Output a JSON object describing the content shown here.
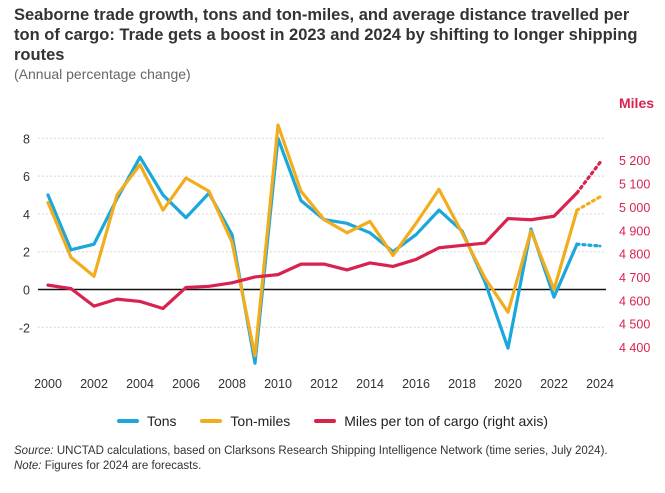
{
  "title": "Seaborne trade growth, tons and ton-miles, and average distance travelled per ton of cargo: Trade gets a boost in 2023 and 2024 by shifting to longer shipping routes",
  "subtitle": "(Annual percentage change)",
  "right_axis_label": "Miles",
  "legend": {
    "tons": "Tons",
    "ton_miles": "Ton-miles",
    "miles": "Miles per ton of cargo (right axis)"
  },
  "source": {
    "label": "Source:",
    "text": "UNCTAD calculations, based on Clarksons Research Shipping Intelligence Network (time series, July 2024)."
  },
  "note": {
    "label": "Note:",
    "text": "Figures for 2024 are forecasts."
  },
  "colors": {
    "tons": "#1aa7dc",
    "ton_miles": "#f2ad1f",
    "miles": "#d8234f",
    "axis_right": "#d8234f",
    "grid": "#c8c8c8"
  },
  "chart_data": {
    "type": "line",
    "x": [
      2000,
      2001,
      2002,
      2003,
      2004,
      2005,
      2006,
      2007,
      2008,
      2009,
      2010,
      2011,
      2012,
      2013,
      2014,
      2015,
      2016,
      2017,
      2018,
      2019,
      2020,
      2021,
      2022,
      2023,
      2024
    ],
    "x_ticks": [
      "2000",
      "2002",
      "2004",
      "2006",
      "2008",
      "2010",
      "2012",
      "2014",
      "2016",
      "2018",
      "2020",
      "2022",
      "2024"
    ],
    "y_left": {
      "ticks": [
        -2,
        0,
        2,
        4,
        6,
        8
      ],
      "ylim": [
        -4,
        9
      ]
    },
    "y_right": {
      "label": "Miles",
      "ticks": [
        "4 400",
        "4 500",
        "4 600",
        "4 700",
        "4 800",
        "4 900",
        "5 000",
        "5 100",
        "5 200"
      ],
      "tick_values": [
        4400,
        4500,
        4600,
        4700,
        4800,
        4900,
        5000,
        5100,
        5200
      ]
    },
    "forecast_from": 2023,
    "series": [
      {
        "name": "Tons",
        "axis": "left",
        "values": [
          5.0,
          2.1,
          2.4,
          4.8,
          7.0,
          5.0,
          3.8,
          5.1,
          2.9,
          -3.9,
          8.0,
          4.7,
          3.7,
          3.5,
          3.0,
          2.0,
          2.9,
          4.2,
          3.1,
          0.4,
          -3.1,
          3.2,
          -0.4,
          2.4,
          2.3
        ]
      },
      {
        "name": "Ton-miles",
        "axis": "left",
        "values": [
          4.6,
          1.7,
          0.7,
          5.0,
          6.6,
          4.2,
          5.9,
          5.2,
          2.5,
          -3.5,
          8.7,
          5.2,
          3.7,
          3.0,
          3.6,
          1.8,
          3.5,
          5.3,
          3.0,
          0.6,
          -1.2,
          3.1,
          0.0,
          4.2,
          4.9
        ]
      },
      {
        "name": "Miles per ton of cargo (right axis)",
        "axis": "right",
        "values": [
          4665,
          4650,
          4575,
          4605,
          4595,
          4565,
          4655,
          4660,
          4675,
          4700,
          4710,
          4755,
          4755,
          4730,
          4760,
          4745,
          4775,
          4825,
          4835,
          4845,
          4950,
          4945,
          4960,
          5060,
          5190
        ]
      }
    ],
    "grid": true,
    "legend_position": "bottom"
  }
}
